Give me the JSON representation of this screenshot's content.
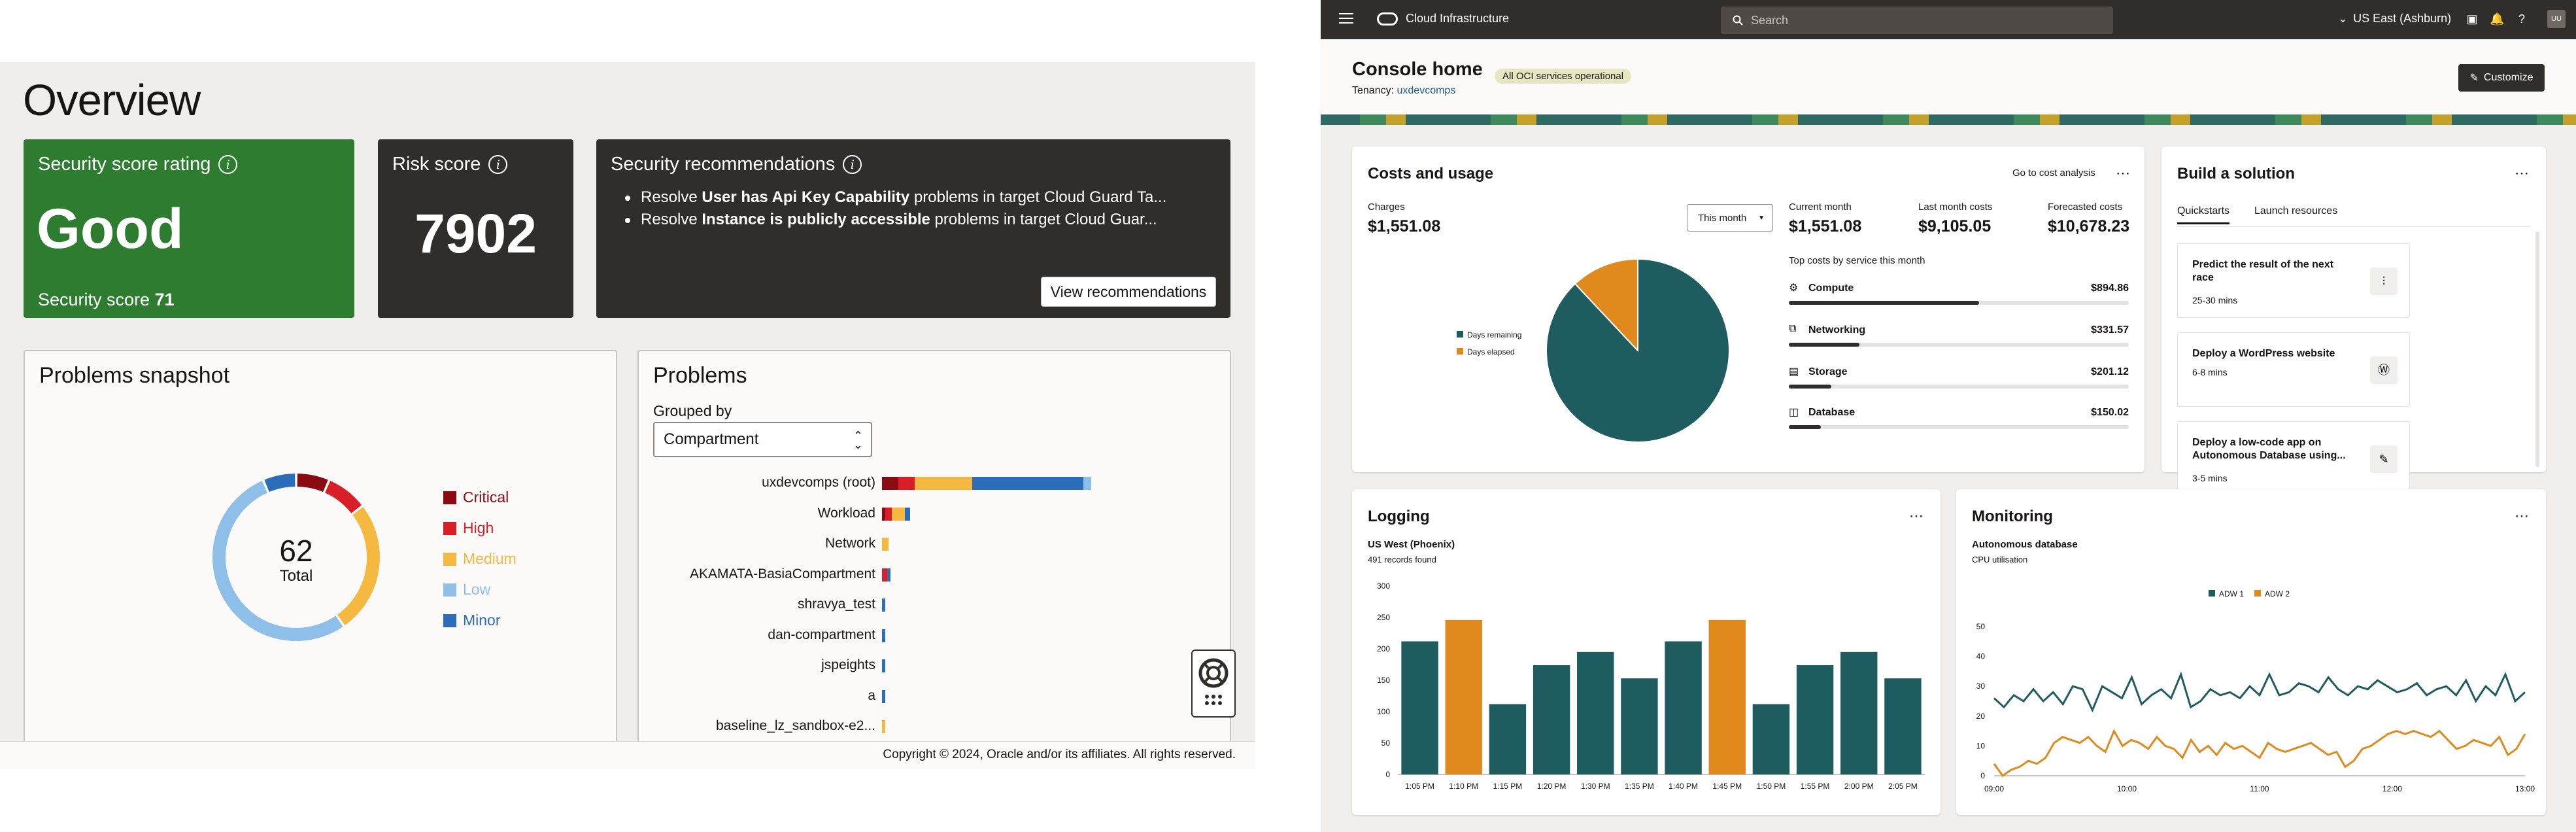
{
  "overview": {
    "title": "Overview",
    "rating": {
      "title": "Security score rating",
      "value": "Good",
      "score_label": "Security score",
      "score": "71"
    },
    "risk": {
      "title": "Risk score",
      "value": "7902"
    },
    "recommendations": {
      "title": "Security recommendations",
      "items": [
        {
          "pre": "Resolve ",
          "bold": "User has Api Key Capability",
          "post": " problems in target Cloud Guard Ta..."
        },
        {
          "pre": "Resolve ",
          "bold": "Instance is publicly accessible",
          "post": " problems in target Cloud Guar..."
        }
      ],
      "button": "View recommendations"
    },
    "snapshot": {
      "title": "Problems snapshot",
      "total": "62",
      "total_label": "Total",
      "legend": [
        {
          "name": "Critical",
          "color": "#8a0c12",
          "value": 4
        },
        {
          "name": "High",
          "color": "#d81e26",
          "value": 5
        },
        {
          "name": "Medium",
          "color": "#f5b942",
          "value": 16
        },
        {
          "name": "Low",
          "color": "#8ebfe8",
          "value": 33
        },
        {
          "name": "Minor",
          "color": "#2b6db8",
          "value": 4
        }
      ]
    },
    "problems": {
      "title": "Problems",
      "grouped_label": "Grouped by",
      "grouped_value": "Compartment",
      "rows": [
        {
          "name": "uxdevcomps (root)",
          "segments": [
            [
              10,
              "#8a0c12"
            ],
            [
              10,
              "#d81e26"
            ],
            [
              35,
              "#f5b942"
            ],
            [
              68,
              "#2b6db8"
            ],
            [
              5,
              "#8ebfe8"
            ]
          ]
        },
        {
          "name": "Workload",
          "segments": [
            [
              2,
              "#8a0c12"
            ],
            [
              4,
              "#d81e26"
            ],
            [
              8,
              "#f5b942"
            ],
            [
              3,
              "#2b6db8"
            ]
          ]
        },
        {
          "name": "Network",
          "segments": [
            [
              4,
              "#f5b942"
            ]
          ]
        },
        {
          "name": "AKAMATA-BasiaCompartment",
          "segments": [
            [
              3,
              "#d81e26"
            ],
            [
              2,
              "#2b6db8"
            ]
          ]
        },
        {
          "name": "shravya_test",
          "segments": [
            [
              2,
              "#2b6db8"
            ]
          ]
        },
        {
          "name": "dan-compartment",
          "segments": [
            [
              2,
              "#2b6db8"
            ]
          ]
        },
        {
          "name": "jspeights",
          "segments": [
            [
              2,
              "#2b6db8"
            ]
          ]
        },
        {
          "name": "a",
          "segments": [
            [
              2,
              "#2b6db8"
            ]
          ]
        },
        {
          "name": "baseline_lz_sandbox-e2...",
          "segments": [
            [
              2,
              "#f5b942"
            ]
          ]
        }
      ]
    },
    "footer": "Copyright © 2024, Oracle and/or its affiliates. All rights reserved."
  },
  "console": {
    "brand": "Cloud Infrastructure",
    "search_placeholder": "Search",
    "region": "US East (Ashburn)",
    "avatar": "UU",
    "title": "Console home",
    "status_badge": "All OCI services operational",
    "tenancy_label": "Tenancy:",
    "tenancy": "uxdevcomps",
    "customize": "Customize",
    "costs": {
      "title": "Costs and usage",
      "link": "Go to cost analysis",
      "charges_label": "Charges",
      "charges": "$1,551.08",
      "period": "This month",
      "current_label": "Current month",
      "current": "$1,551.08",
      "last_label": "Last month costs",
      "last": "$9,105.05",
      "forecast_label": "Forecasted costs",
      "forecast": "$10,678.23",
      "top_label": "Top costs by service this month",
      "services": [
        {
          "name": "Compute",
          "amount": "$894.86",
          "value": 894.86
        },
        {
          "name": "Networking",
          "amount": "$331.57",
          "value": 331.57
        },
        {
          "name": "Storage",
          "amount": "$201.12",
          "value": 201.12
        },
        {
          "name": "Database",
          "amount": "$150.02",
          "value": 150.02
        }
      ],
      "pie": {
        "legend": [
          {
            "name": "Days remaining",
            "color": "#1f5c60",
            "value": 88
          },
          {
            "name": "Days elapsed",
            "color": "#e08a1e",
            "value": 12
          }
        ]
      }
    },
    "build": {
      "title": "Build a solution",
      "tabs": [
        "Quickstarts",
        "Launch resources"
      ],
      "items": [
        {
          "title": "Predict the result of the next race",
          "meta": "25-30 mins",
          "icon": "chart-icon"
        },
        {
          "title": "Deploy a WordPress website",
          "meta": "6-8 mins",
          "icon": "wordpress-icon"
        },
        {
          "title": "Deploy a low-code app on Autonomous Database using...",
          "meta": "3-5 mins",
          "icon": "pencil-icon"
        }
      ]
    },
    "logging": {
      "title": "Logging",
      "region": "US West (Phoenix)",
      "records": "491 records found"
    },
    "monitoring": {
      "title": "Monitoring",
      "subject": "Autonomous database",
      "metric": "CPU utilisation"
    }
  },
  "chart_data": [
    {
      "type": "bar",
      "categories": [
        "1:05 PM",
        "1:10 PM",
        "1:15 PM",
        "1:20 PM",
        "1:30 PM",
        "1:35 PM",
        "1:40 PM",
        "1:45 PM",
        "1:50 PM",
        "1:55 PM",
        "2:00 PM",
        "2:05 PM"
      ],
      "values": [
        212,
        246,
        112,
        174,
        195,
        153,
        212,
        246,
        112,
        174,
        195,
        153
      ],
      "highlight": [
        1,
        7
      ],
      "colors": {
        "normal": "#1f5c60",
        "highlight": "#e08a1e"
      },
      "ylim": [
        0,
        300
      ],
      "yticks": [
        0,
        50,
        100,
        150,
        200,
        250,
        300
      ]
    },
    {
      "type": "line",
      "legend_position": "top",
      "series": [
        {
          "name": "ADW 1",
          "color": "#1f5c60",
          "values": [
            26,
            23,
            27,
            25,
            29,
            25,
            28,
            24,
            30,
            29,
            22,
            30,
            28,
            26,
            33,
            24,
            27,
            29,
            26,
            34,
            23,
            25,
            29,
            27,
            28,
            26,
            30,
            27,
            34,
            27,
            28,
            31,
            30,
            28,
            33,
            29,
            27,
            30,
            29,
            32,
            30,
            28,
            29,
            31,
            27,
            29,
            30,
            27,
            32,
            25,
            30,
            27,
            34,
            25,
            28
          ]
        },
        {
          "name": "ADW 2",
          "color": "#e08a1e",
          "values": [
            4,
            0,
            2,
            3,
            5,
            4,
            6,
            11,
            13,
            12,
            11,
            13,
            10,
            8,
            15,
            10,
            12,
            11,
            9,
            13,
            10,
            9,
            6,
            12,
            8,
            10,
            7,
            11,
            9,
            10,
            8,
            6,
            11,
            9,
            8,
            9,
            10,
            11,
            9,
            7,
            8,
            3,
            5,
            9,
            10,
            12,
            14,
            15,
            14,
            15,
            14,
            13,
            15,
            12,
            9,
            10,
            12,
            11,
            10,
            13,
            7,
            9,
            14
          ]
        }
      ],
      "ylim": [
        0,
        50
      ],
      "yticks": [
        0,
        10,
        20,
        30,
        40,
        50
      ],
      "xticks": [
        "09:00",
        "10:00",
        "11:00",
        "12:00",
        "13:00"
      ]
    }
  ]
}
